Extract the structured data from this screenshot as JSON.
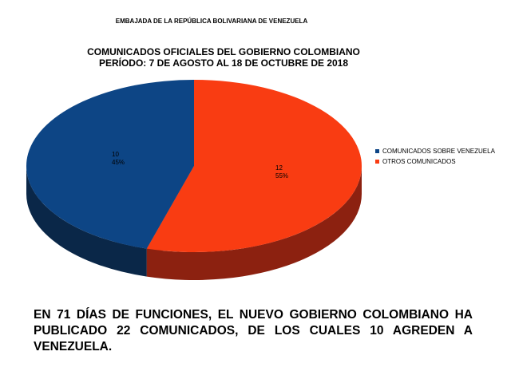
{
  "header": "EMBAJADA DE LA REPÚBLICA BOLIVARIANA DE VENEZUELA",
  "chart_data": {
    "type": "pie",
    "title": "COMUNICADOS OFICIALES DEL GOBIERNO COLOMBIANO",
    "subtitle": "PERÍODO: 7 DE AGOSTO AL 18 DE OCTUBRE DE 2018",
    "three_d": true,
    "legend_position": "right",
    "slices": [
      {
        "label": "COMUNICADOS SOBRE VENEZUELA",
        "value": 10,
        "value_label": "10",
        "percent_label": "45%",
        "color": "#0d4585",
        "side_color": "#0a2748"
      },
      {
        "label": "OTROS COMUNICADOS",
        "value": 12,
        "value_label": "12",
        "percent_label": "55%",
        "color": "#f93c12",
        "side_color": "#8c2110"
      }
    ]
  },
  "footer_text": "EN 71 DÍAS DE FUNCIONES, EL NUEVO GOBIERNO COLOMBIANO HA PUBLICADO 22 COMUNICADOS, DE LOS CUALES 10 AGREDEN A VENEZUELA."
}
